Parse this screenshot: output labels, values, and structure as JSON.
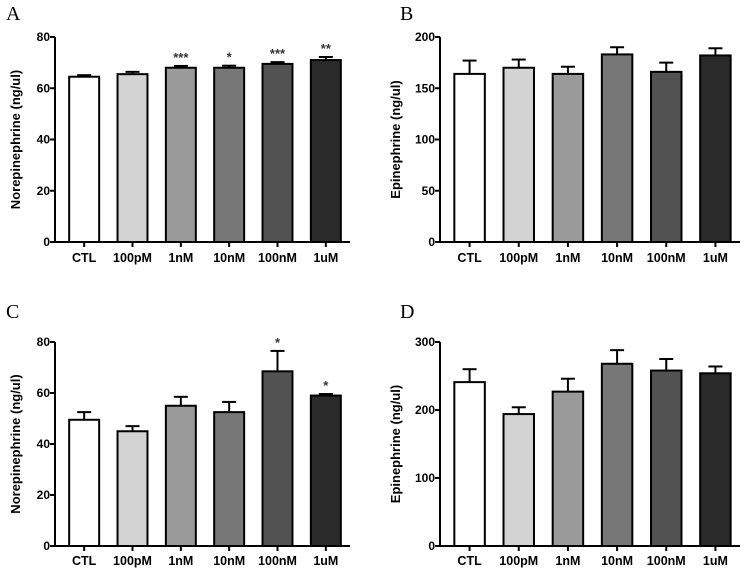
{
  "chart_data": [
    {
      "panel": "A",
      "type": "bar",
      "ylabel": "Norepinephrine (ng/ul)",
      "ylim": [
        0,
        80
      ],
      "yticks": [
        0,
        20,
        40,
        60,
        80
      ],
      "categories": [
        "CTL",
        "100pM",
        "1nM",
        "10nM",
        "100nM",
        "1uM"
      ],
      "values": [
        64.5,
        65.5,
        68,
        68,
        69.5,
        71
      ],
      "errors": [
        0.6,
        0.9,
        0.7,
        0.8,
        0.7,
        1.2
      ],
      "significance": [
        "",
        "",
        "***",
        "*",
        "***",
        "**"
      ],
      "colors": [
        "#ffffff",
        "#d3d3d3",
        "#9a9a9a",
        "#777777",
        "#525252",
        "#2a2a2a"
      ]
    },
    {
      "panel": "B",
      "type": "bar",
      "ylabel": "Epinephrine (ng/ul)",
      "ylim": [
        0,
        200
      ],
      "yticks": [
        0,
        50,
        100,
        150,
        200
      ],
      "categories": [
        "CTL",
        "100pM",
        "1nM",
        "10nM",
        "100nM",
        "1uM"
      ],
      "values": [
        164,
        170,
        164,
        183,
        166,
        182
      ],
      "errors": [
        13,
        8,
        7,
        7,
        9,
        7
      ],
      "significance": [
        "",
        "",
        "",
        "",
        "",
        ""
      ],
      "colors": [
        "#ffffff",
        "#d3d3d3",
        "#9a9a9a",
        "#777777",
        "#525252",
        "#2a2a2a"
      ]
    },
    {
      "panel": "C",
      "type": "bar",
      "ylabel": "Norepinephrine (ng/ul)",
      "ylim": [
        0,
        80
      ],
      "yticks": [
        0,
        20,
        40,
        60,
        80
      ],
      "categories": [
        "CTL",
        "100pM",
        "1nM",
        "10nM",
        "100nM",
        "1uM"
      ],
      "values": [
        49.5,
        45,
        55,
        52.5,
        68.5,
        59
      ],
      "errors": [
        3,
        2,
        3.5,
        4,
        8,
        0.6
      ],
      "significance": [
        "",
        "",
        "",
        "",
        "*",
        "*"
      ],
      "colors": [
        "#ffffff",
        "#d3d3d3",
        "#9a9a9a",
        "#777777",
        "#525252",
        "#2a2a2a"
      ]
    },
    {
      "panel": "D",
      "type": "bar",
      "ylabel": "Epinephrine (ng/ul)",
      "ylim": [
        0,
        300
      ],
      "yticks": [
        0,
        100,
        200,
        300
      ],
      "categories": [
        "CTL",
        "100pM",
        "1nM",
        "10nM",
        "100nM",
        "1uM"
      ],
      "values": [
        241,
        194,
        227,
        268,
        258,
        254
      ],
      "errors": [
        19,
        10,
        19,
        20,
        17,
        10
      ],
      "significance": [
        "",
        "",
        "",
        "",
        "",
        ""
      ],
      "colors": [
        "#ffffff",
        "#d3d3d3",
        "#9a9a9a",
        "#777777",
        "#525252",
        "#2a2a2a"
      ]
    }
  ]
}
